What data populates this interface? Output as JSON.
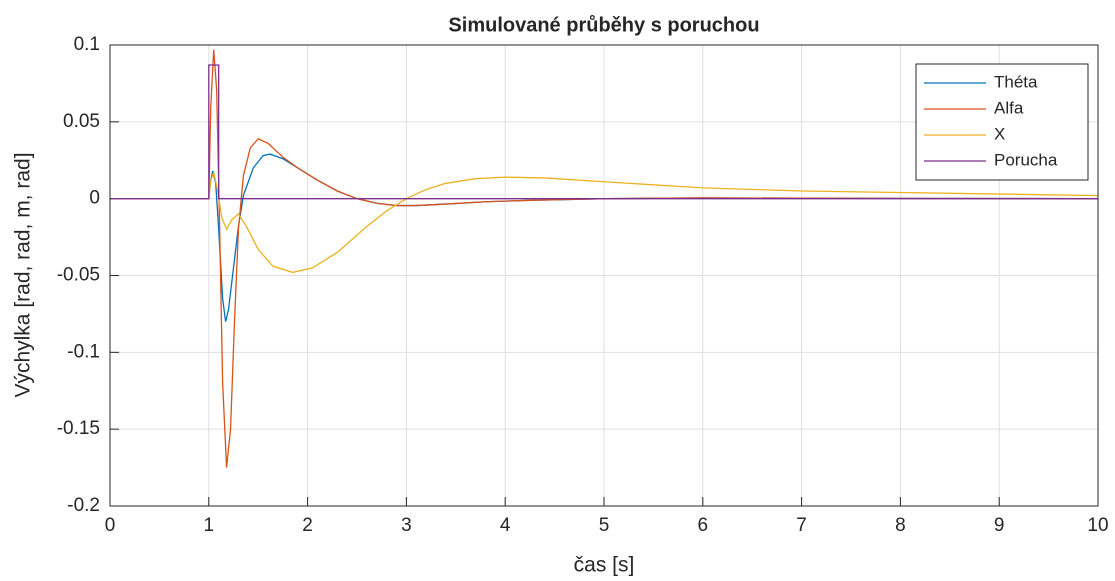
{
  "chart_data": {
    "type": "line",
    "title": "Simulované průběhy s poruchou",
    "xlabel": "čas [s]",
    "ylabel": "Výchylka [rad, rad, m, rad]",
    "xlim": [
      0,
      10
    ],
    "xticks": [
      0,
      1,
      2,
      3,
      4,
      5,
      6,
      7,
      8,
      9,
      10
    ],
    "ylim": [
      -0.2,
      0.1
    ],
    "yticks": [
      -0.2,
      -0.15,
      -0.1,
      -0.05,
      0,
      0.05,
      0.1
    ],
    "grid": true,
    "legend": "northeast",
    "series": [
      {
        "name": "Théta",
        "color": "#0072BD",
        "x": [
          0,
          1,
          1.02,
          1.04,
          1.07,
          1.1,
          1.14,
          1.17,
          1.2,
          1.25,
          1.3,
          1.35,
          1.45,
          1.55,
          1.62,
          1.75,
          1.9,
          2.1,
          2.3,
          2.5,
          2.7,
          2.9,
          3.1,
          3.4,
          3.8,
          4.3,
          5,
          6,
          7,
          10
        ],
        "values": [
          0,
          0,
          0.012,
          0.018,
          0.01,
          -0.02,
          -0.065,
          -0.08,
          -0.072,
          -0.045,
          -0.018,
          0.002,
          0.02,
          0.028,
          0.029,
          0.026,
          0.02,
          0.012,
          0.005,
          0,
          -0.003,
          -0.0045,
          -0.0045,
          -0.0035,
          -0.002,
          -0.001,
          0,
          0.0005,
          0.0003,
          0
        ]
      },
      {
        "name": "Alfa",
        "color": "#D95319",
        "x": [
          0,
          1,
          1.02,
          1.05,
          1.08,
          1.11,
          1.14,
          1.18,
          1.22,
          1.26,
          1.3,
          1.35,
          1.42,
          1.5,
          1.6,
          1.75,
          1.9,
          2.1,
          2.3,
          2.5,
          2.7,
          2.9,
          3.1,
          3.4,
          3.8,
          4.3,
          5,
          6,
          7,
          10
        ],
        "values": [
          0,
          0,
          0.06,
          0.097,
          0.07,
          -0.02,
          -0.12,
          -0.175,
          -0.15,
          -0.08,
          -0.02,
          0.015,
          0.033,
          0.039,
          0.036,
          0.027,
          0.02,
          0.012,
          0.005,
          0,
          -0.003,
          -0.0045,
          -0.0045,
          -0.0035,
          -0.002,
          -0.001,
          0,
          0.0005,
          0.0003,
          0
        ]
      },
      {
        "name": "X",
        "color": "#EDB120",
        "x": [
          0,
          1,
          1.02,
          1.05,
          1.09,
          1.13,
          1.18,
          1.23,
          1.3,
          1.38,
          1.5,
          1.65,
          1.85,
          2.05,
          2.3,
          2.6,
          2.8,
          3.0,
          3.2,
          3.4,
          3.7,
          4.0,
          4.4,
          5,
          6,
          7,
          8,
          9,
          10
        ],
        "values": [
          0,
          0,
          0.012,
          0.017,
          0.005,
          -0.012,
          -0.02,
          -0.014,
          -0.01,
          -0.018,
          -0.033,
          -0.044,
          -0.048,
          -0.045,
          -0.035,
          -0.018,
          -0.008,
          0,
          0.006,
          0.01,
          0.013,
          0.014,
          0.0135,
          0.011,
          0.007,
          0.005,
          0.004,
          0.003,
          0.002
        ]
      },
      {
        "name": "Porucha",
        "color": "#7E2F8E",
        "x": [
          0,
          1,
          1,
          1.1,
          1.1,
          10
        ],
        "values": [
          0,
          0,
          0.087,
          0.087,
          0,
          0
        ]
      }
    ]
  }
}
